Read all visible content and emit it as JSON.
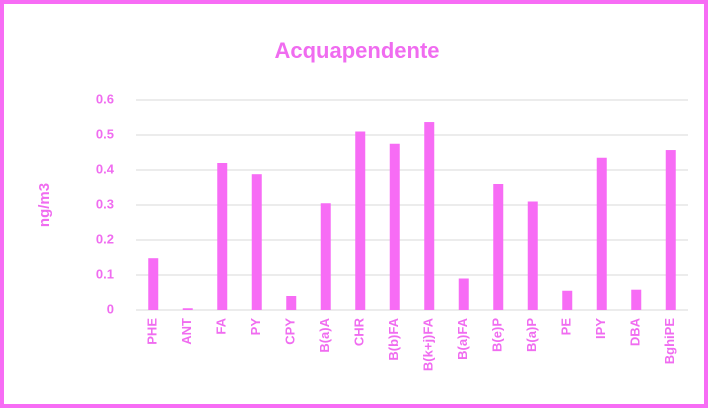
{
  "chart_data": {
    "type": "bar",
    "title": "Acquapendente",
    "y_label": "ng/m3",
    "categories": [
      "PHE",
      "ANT",
      "FA",
      "PY",
      "CPY",
      "B(a)A",
      "CHR",
      "B(b)FA",
      "B(k+j)FA",
      "B(a)FA",
      "B(e)P",
      "B(a)P",
      "PE",
      "IPY",
      "DBA",
      "BghiPE"
    ],
    "values": [
      0.148,
      0.005,
      0.42,
      0.388,
      0.04,
      0.305,
      0.51,
      0.475,
      0.537,
      0.09,
      0.36,
      0.31,
      0.055,
      0.435,
      0.058,
      0.457
    ],
    "color": "#f76cf5",
    "ylim": [
      0,
      0.6
    ],
    "yticks": [
      0,
      0.1,
      0.2,
      0.3,
      0.4,
      0.5,
      0.6
    ],
    "grid": true
  }
}
